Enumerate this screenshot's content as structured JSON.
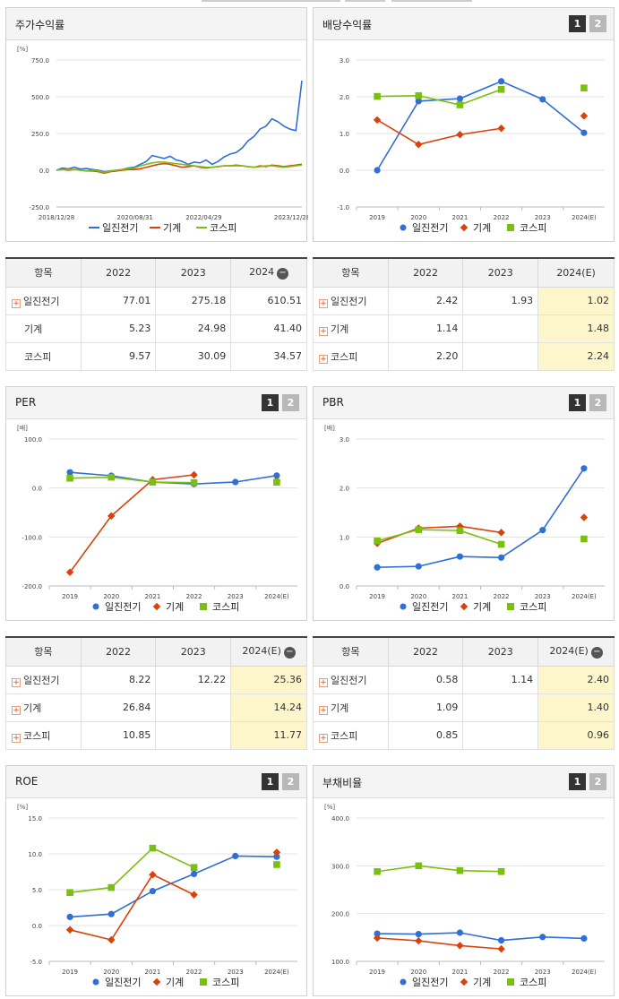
{
  "panels": [
    {
      "title": "주가수익률",
      "tabs": []
    },
    {
      "title": "배당수익률",
      "tabs": [
        "1",
        "2"
      ]
    },
    {
      "title": "PER",
      "tabs": [
        "1",
        "2"
      ]
    },
    {
      "title": "PBR",
      "tabs": [
        "1",
        "2"
      ]
    },
    {
      "title": "ROE",
      "tabs": [
        "1",
        "2"
      ]
    },
    {
      "title": "부채비율",
      "tabs": [
        "1",
        "2"
      ]
    }
  ],
  "colors": {
    "series1": "#2f6fd6",
    "series2": "#d9420b",
    "series3": "#7bbf12"
  },
  "tables": [
    {
      "header": [
        "항목",
        "2022",
        "2023",
        "2024"
      ],
      "has_minus": true,
      "highlight_last": false,
      "rows": [
        {
          "name": "일진전기",
          "plus": true,
          "values": [
            "77.01",
            "275.18",
            "610.51"
          ]
        },
        {
          "name": "기계",
          "plus": false,
          "values": [
            "5.23",
            "24.98",
            "41.40"
          ]
        },
        {
          "name": "코스피",
          "plus": false,
          "values": [
            "9.57",
            "30.09",
            "34.57"
          ]
        }
      ]
    },
    {
      "header": [
        "항목",
        "2022",
        "2023",
        "2024(E)"
      ],
      "has_minus": false,
      "highlight_last": true,
      "rows": [
        {
          "name": "일진전기",
          "plus": true,
          "values": [
            "2.42",
            "1.93",
            "1.02"
          ]
        },
        {
          "name": "기계",
          "plus": true,
          "values": [
            "1.14",
            "",
            "1.48"
          ]
        },
        {
          "name": "코스피",
          "plus": true,
          "values": [
            "2.20",
            "",
            "2.24"
          ]
        }
      ]
    },
    {
      "header": [
        "항목",
        "2022",
        "2023",
        "2024(E)"
      ],
      "has_minus": true,
      "highlight_last": true,
      "rows": [
        {
          "name": "일진전기",
          "plus": true,
          "values": [
            "8.22",
            "12.22",
            "25.36"
          ]
        },
        {
          "name": "기계",
          "plus": true,
          "values": [
            "26.84",
            "",
            "14.24"
          ]
        },
        {
          "name": "코스피",
          "plus": true,
          "values": [
            "10.85",
            "",
            "11.77"
          ]
        }
      ]
    },
    {
      "header": [
        "항목",
        "2022",
        "2023",
        "2024(E)"
      ],
      "has_minus": true,
      "highlight_last": true,
      "rows": [
        {
          "name": "일진전기",
          "plus": true,
          "values": [
            "0.58",
            "1.14",
            "2.40"
          ]
        },
        {
          "name": "기계",
          "plus": true,
          "values": [
            "1.09",
            "",
            "1.40"
          ]
        },
        {
          "name": "코스피",
          "plus": true,
          "values": [
            "0.85",
            "",
            "0.96"
          ]
        }
      ]
    }
  ],
  "chart_data": [
    {
      "type": "line",
      "unit": "[%]",
      "x_ticks": [
        "2018/12/28",
        "2020/08/31",
        "2022/04/29",
        "2023/12/28"
      ],
      "yticks": [
        "750.0",
        "500.0",
        "250.0",
        "0.0",
        "-250.0"
      ],
      "ylim": [
        -250,
        750
      ],
      "series": [
        {
          "name": "일진전기",
          "values": [
            0,
            15,
            10,
            20,
            8,
            12,
            5,
            0,
            -10,
            -5,
            0,
            5,
            15,
            20,
            40,
            60,
            100,
            90,
            80,
            95,
            70,
            60,
            40,
            55,
            50,
            70,
            40,
            60,
            90,
            110,
            120,
            150,
            200,
            230,
            280,
            300,
            350,
            330,
            300,
            280,
            270,
            610
          ]
        },
        {
          "name": "기계",
          "values": [
            0,
            5,
            0,
            5,
            0,
            -5,
            -5,
            -10,
            -20,
            -10,
            -5,
            0,
            5,
            5,
            10,
            20,
            30,
            40,
            45,
            40,
            30,
            20,
            25,
            30,
            20,
            15,
            20,
            25,
            30,
            30,
            35,
            30,
            25,
            20,
            30,
            25,
            35,
            30,
            25,
            30,
            35,
            41
          ]
        },
        {
          "name": "코스피",
          "values": [
            0,
            5,
            5,
            5,
            0,
            -5,
            0,
            -5,
            -15,
            -5,
            0,
            5,
            10,
            15,
            30,
            40,
            50,
            55,
            55,
            50,
            45,
            40,
            35,
            30,
            25,
            20,
            20,
            25,
            30,
            30,
            30,
            30,
            25,
            20,
            25,
            30,
            30,
            25,
            20,
            25,
            30,
            35
          ]
        }
      ]
    },
    {
      "type": "line",
      "unit": "",
      "categories": [
        "2019",
        "2020",
        "2021",
        "2022",
        "2023",
        "2024(E)"
      ],
      "yticks": [
        "3.0",
        "2.0",
        "1.0",
        "0.0",
        "-1.0"
      ],
      "ylim": [
        -1,
        3
      ],
      "series": [
        {
          "name": "일진전기",
          "values": [
            0.0,
            1.88,
            1.95,
            2.42,
            1.93,
            1.02
          ]
        },
        {
          "name": "기계",
          "values": [
            1.37,
            0.7,
            0.97,
            1.14,
            null,
            1.48
          ]
        },
        {
          "name": "코스피",
          "values": [
            2.01,
            2.03,
            1.78,
            2.2,
            null,
            2.24
          ]
        }
      ]
    },
    {
      "type": "line",
      "unit": "[배]",
      "categories": [
        "2019",
        "2020",
        "2021",
        "2022",
        "2023",
        "2024(E)"
      ],
      "yticks": [
        "100.0",
        "0.0",
        "-100.0",
        "-200.0"
      ],
      "ylim": [
        -200,
        100
      ],
      "series": [
        {
          "name": "일진전기",
          "values": [
            32,
            25,
            12,
            8.22,
            12.22,
            25.36
          ]
        },
        {
          "name": "기계",
          "values": [
            -172,
            -57,
            17,
            26.84,
            null,
            14.24
          ]
        },
        {
          "name": "코스피",
          "values": [
            20,
            22,
            12,
            10.85,
            null,
            11.77
          ]
        }
      ]
    },
    {
      "type": "line",
      "unit": "[배]",
      "categories": [
        "2019",
        "2020",
        "2021",
        "2022",
        "2023",
        "2024(E)"
      ],
      "yticks": [
        "3.0",
        "2.0",
        "1.0",
        "0.0"
      ],
      "ylim": [
        0,
        3
      ],
      "series": [
        {
          "name": "일진전기",
          "values": [
            0.38,
            0.4,
            0.6,
            0.58,
            1.14,
            2.4
          ]
        },
        {
          "name": "기계",
          "values": [
            0.87,
            1.18,
            1.22,
            1.09,
            null,
            1.4
          ]
        },
        {
          "name": "코스피",
          "values": [
            0.92,
            1.15,
            1.13,
            0.85,
            null,
            0.96
          ]
        }
      ]
    },
    {
      "type": "line",
      "unit": "[%]",
      "categories": [
        "2019",
        "2020",
        "2021",
        "2022",
        "2023",
        "2024(E)"
      ],
      "yticks": [
        "15.0",
        "10.0",
        "5.0",
        "0.0",
        "-5.0"
      ],
      "ylim": [
        -5,
        15
      ],
      "series": [
        {
          "name": "일진전기",
          "values": [
            1.2,
            1.6,
            4.8,
            7.2,
            9.7,
            9.6
          ]
        },
        {
          "name": "기계",
          "values": [
            -0.6,
            -2.0,
            7.1,
            4.3,
            null,
            10.2
          ]
        },
        {
          "name": "코스피",
          "values": [
            4.6,
            5.3,
            10.8,
            8.1,
            null,
            8.5
          ]
        }
      ]
    },
    {
      "type": "line",
      "unit": "[%]",
      "categories": [
        "2019",
        "2020",
        "2021",
        "2022",
        "2023",
        "2024(E)"
      ],
      "yticks": [
        "400.0",
        "300.0",
        "200.0",
        "100.0"
      ],
      "ylim": [
        100,
        400
      ],
      "series": [
        {
          "name": "일진전기",
          "values": [
            158,
            157,
            160,
            144,
            151,
            148
          ]
        },
        {
          "name": "기계",
          "values": [
            149,
            143,
            133,
            126,
            null,
            null
          ]
        },
        {
          "name": "코스피",
          "values": [
            288,
            300,
            290,
            288,
            null,
            null
          ]
        }
      ]
    }
  ]
}
